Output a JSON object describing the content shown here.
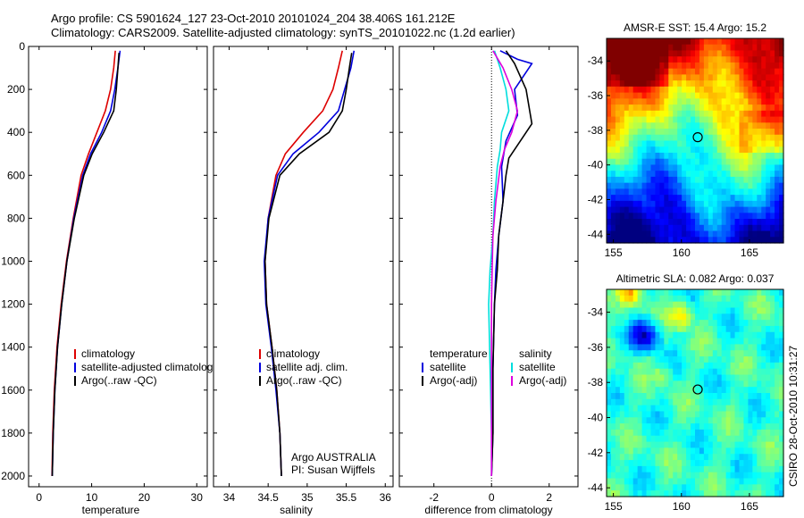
{
  "header": {
    "line1": "Argo profile: CS 5901624_127 23-Oct-2010 20101024_204 38.406S 161.212E",
    "line2": "Climatology: CARS2009. Satellite-adjusted climatology: synTS_20101022.nc (1.2d earlier)"
  },
  "colors": {
    "climatology": "#dd0000",
    "satellite": "#0000dd",
    "argo": "#000000",
    "salinity_sat": "#00dddd",
    "salinity_argo": "#dd00dd"
  },
  "chart_data": [
    {
      "type": "line",
      "xlabel": "temperature",
      "ylabel": "",
      "xlim": [
        -2,
        32
      ],
      "ylim": [
        2050,
        0
      ],
      "xticks": [
        0,
        10,
        20,
        30
      ],
      "yticks": [
        0,
        200,
        400,
        600,
        800,
        1000,
        1200,
        1400,
        1600,
        1800,
        2000
      ],
      "legend": [
        "climatology",
        "satellite-adjusted climatology",
        "Argo(..raw -QC)"
      ],
      "series": [
        {
          "name": "climatology",
          "color": "climatology",
          "x": [
            14.5,
            14.2,
            13.6,
            12.6,
            11.0,
            9.4,
            8.0,
            6.5,
            5.2,
            4.2,
            3.4,
            2.9,
            2.6,
            2.45
          ],
          "y": [
            20,
            100,
            200,
            300,
            400,
            500,
            600,
            800,
            1000,
            1200,
            1400,
            1600,
            1800,
            2000
          ]
        },
        {
          "name": "satellite-adjusted climatology",
          "color": "satellite",
          "x": [
            15.4,
            15.0,
            14.4,
            13.6,
            11.9,
            9.8,
            8.3,
            6.6,
            5.3,
            4.3,
            3.5,
            3.0,
            2.7,
            2.5
          ],
          "y": [
            20,
            100,
            200,
            300,
            400,
            500,
            600,
            800,
            1000,
            1200,
            1400,
            1600,
            1800,
            2000
          ]
        },
        {
          "name": "Argo(..raw -QC)",
          "color": "argo",
          "x": [
            15.2,
            15.0,
            14.7,
            14.2,
            12.3,
            10.1,
            8.5,
            6.7,
            5.3,
            4.3,
            3.5,
            3.0,
            2.7,
            2.5
          ],
          "y": [
            30,
            100,
            200,
            300,
            400,
            500,
            600,
            800,
            1000,
            1200,
            1400,
            1600,
            1800,
            2000
          ]
        }
      ]
    },
    {
      "type": "line",
      "xlabel": "salinity",
      "xlim": [
        33.8,
        36.1
      ],
      "ylim": [
        2050,
        0
      ],
      "xticks": [
        34,
        34.5,
        35,
        35.5,
        36
      ],
      "legend": [
        "climatology",
        "satellite adj. clim.",
        "Argo(..raw -QC)"
      ],
      "annotation": [
        "Argo AUSTRALIA",
        "PI: Susan Wijffels"
      ],
      "series": [
        {
          "name": "climatology",
          "color": "climatology",
          "x": [
            35.45,
            35.4,
            35.33,
            35.2,
            34.95,
            34.72,
            34.6,
            34.5,
            34.46,
            34.48,
            34.55,
            34.61,
            34.65,
            34.67
          ],
          "y": [
            20,
            100,
            200,
            300,
            400,
            500,
            600,
            800,
            1000,
            1200,
            1400,
            1600,
            1800,
            2000
          ]
        },
        {
          "name": "satellite adj. clim.",
          "color": "satellite",
          "x": [
            35.6,
            35.56,
            35.48,
            35.4,
            35.15,
            34.82,
            34.62,
            34.5,
            34.45,
            34.47,
            34.54,
            34.6,
            34.65,
            34.67
          ],
          "y": [
            20,
            100,
            200,
            300,
            400,
            500,
            600,
            800,
            1000,
            1200,
            1400,
            1600,
            1800,
            2000
          ]
        },
        {
          "name": "Argo(..raw -QC)",
          "color": "argo",
          "x": [
            35.57,
            35.54,
            35.5,
            35.45,
            35.28,
            34.9,
            34.65,
            34.51,
            34.46,
            34.48,
            34.55,
            34.61,
            34.65,
            34.67
          ],
          "y": [
            30,
            100,
            200,
            300,
            400,
            500,
            600,
            800,
            1000,
            1200,
            1400,
            1600,
            1800,
            2000
          ]
        }
      ]
    },
    {
      "type": "line",
      "xlabel": "difference from climatology",
      "xlim": [
        -3.2,
        3.0
      ],
      "ylim": [
        2050,
        0
      ],
      "xticks": [
        -2,
        0,
        2
      ],
      "legend_groups": [
        {
          "heading": "temperature",
          "items": [
            {
              "label": "satellite",
              "color": "satellite"
            },
            {
              "label": "Argo(-adj)",
              "color": "argo"
            }
          ]
        },
        {
          "heading": "salinity",
          "items": [
            {
              "label": "satellite",
              "color": "salinity_sat"
            },
            {
              "label": "Argo(-adj)",
              "color": "salinity_argo"
            }
          ]
        }
      ],
      "series": [
        {
          "name": "temperature satellite",
          "color": "satellite",
          "x": [
            0.3,
            0.9,
            1.4,
            0.8,
            0.9,
            0.5,
            0.35,
            0.4,
            0.25,
            0.15,
            0.1,
            0.05,
            0.05,
            0.0
          ],
          "y": [
            20,
            60,
            80,
            200,
            320,
            440,
            560,
            720,
            880,
            1040,
            1200,
            1500,
            1800,
            2000
          ]
        },
        {
          "name": "temperature Argo(-adj)",
          "color": "argo",
          "x": [
            0.5,
            0.8,
            1.2,
            1.4,
            1.0,
            0.6,
            0.5,
            0.4,
            0.25,
            0.2,
            0.1,
            0.05,
            0.05,
            0.0
          ],
          "y": [
            20,
            80,
            200,
            360,
            440,
            520,
            600,
            720,
            880,
            1040,
            1200,
            1500,
            1800,
            2000
          ]
        },
        {
          "name": "salinity satellite",
          "color": "salinity_sat",
          "x": [
            0.1,
            0.3,
            0.5,
            0.6,
            0.35,
            0.3,
            0.2,
            0.1,
            0.05,
            -0.05,
            -0.1,
            -0.05,
            0.0,
            0.0
          ],
          "y": [
            20,
            100,
            200,
            300,
            400,
            480,
            560,
            720,
            880,
            1040,
            1200,
            1500,
            1800,
            2000
          ]
        },
        {
          "name": "salinity Argo(-adj)",
          "color": "salinity_argo",
          "x": [
            0.05,
            0.4,
            0.7,
            0.9,
            0.7,
            0.45,
            0.3,
            0.15,
            0.05,
            0.02,
            0.0,
            0.0,
            0.0,
            0.0
          ],
          "y": [
            20,
            100,
            200,
            300,
            400,
            480,
            560,
            720,
            880,
            1040,
            1200,
            1500,
            1800,
            2000
          ]
        }
      ]
    },
    {
      "type": "heatmap",
      "title": "AMSR-E SST: 15.4 Argo: 15.2",
      "xlim": [
        154.5,
        167.5
      ],
      "ylim": [
        -44.5,
        -32.7
      ],
      "xticks": [
        155,
        160,
        165
      ],
      "yticks": [
        -34,
        -36,
        -38,
        -40,
        -42,
        -44
      ],
      "marker": {
        "lon": 161.2,
        "lat": -38.4
      }
    },
    {
      "type": "heatmap",
      "title": "Altimetric SLA: 0.082 Argo: 0.037",
      "xlim": [
        154.5,
        167.5
      ],
      "ylim": [
        -44.5,
        -32.7
      ],
      "xticks": [
        155,
        160,
        165
      ],
      "yticks": [
        -34,
        -36,
        -38,
        -40,
        -42,
        -44
      ],
      "marker": {
        "lon": 161.2,
        "lat": -38.4
      }
    }
  ],
  "side_text": "CSIRO 28-Oct-2010 10:31:27"
}
